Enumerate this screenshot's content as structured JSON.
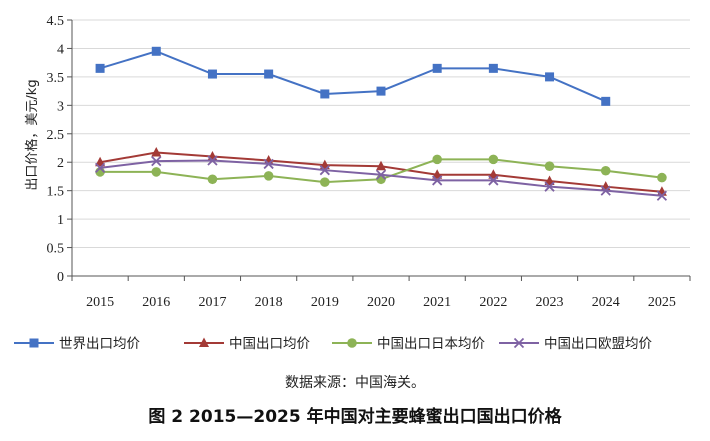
{
  "chart_data": {
    "type": "line",
    "ylabel": "出口价格，美元/kg",
    "ylim": [
      0,
      4.5
    ],
    "yticks": [
      "0",
      "0.5",
      "1",
      "1.5",
      "2",
      "2.5",
      "3",
      "3.5",
      "4",
      "4.5"
    ],
    "categories": [
      "2015",
      "2016",
      "2017",
      "2018",
      "2019",
      "2020",
      "2021",
      "2022",
      "2023",
      "2024",
      "2025"
    ],
    "series": [
      {
        "name": "世界出口均价",
        "color": "#4472C4",
        "marker": "square",
        "values": [
          3.65,
          3.95,
          3.55,
          3.55,
          3.2,
          3.25,
          3.65,
          3.65,
          3.5,
          3.07,
          null
        ]
      },
      {
        "name": "中国出口均价",
        "color": "#A33A36",
        "marker": "triangle",
        "values": [
          2.0,
          2.17,
          2.1,
          2.03,
          1.95,
          1.93,
          1.78,
          1.78,
          1.67,
          1.57,
          1.48
        ]
      },
      {
        "name": "中国出口日本均价",
        "color": "#8DB356",
        "marker": "circle",
        "values": [
          1.83,
          1.83,
          1.7,
          1.76,
          1.65,
          1.7,
          2.05,
          2.05,
          1.93,
          1.85,
          1.73
        ]
      },
      {
        "name": "中国出口欧盟均价",
        "color": "#7E62A3",
        "marker": "x",
        "values": [
          1.9,
          2.02,
          2.03,
          1.97,
          1.86,
          1.78,
          1.68,
          1.68,
          1.57,
          1.5,
          1.41
        ]
      }
    ]
  },
  "source_text": "数据来源：中国海关。",
  "caption": "图 2 2015—2025 年中国对主要蜂蜜出口国出口价格"
}
